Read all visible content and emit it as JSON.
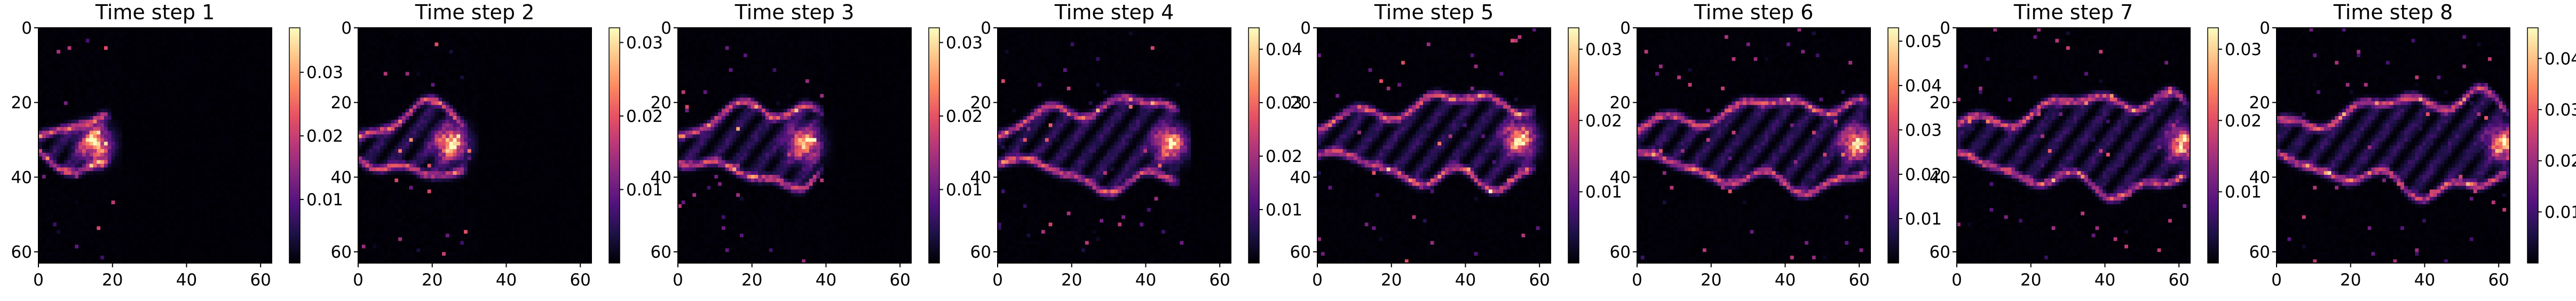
{
  "figure": {
    "colormap": "magma",
    "background": "#ffffff"
  },
  "chart_data": [
    {
      "type": "heatmap",
      "title": "Time step 1",
      "xlabel": "",
      "ylabel": "",
      "xlim": [
        0,
        63
      ],
      "ylim": [
        63,
        0
      ],
      "grid": false,
      "xticks": [
        "0",
        "20",
        "40",
        "60"
      ],
      "yticks": [
        "0",
        "20",
        "40",
        "60"
      ],
      "vmin": 0,
      "vmax": 0.037,
      "colorbar_ticks": [
        "0.01",
        "0.02",
        "0.03"
      ],
      "colorbar_tick_values": [
        0.01,
        0.02,
        0.03
      ],
      "plume": {
        "cy": 31,
        "half_width": 7,
        "length": 20,
        "front_x": 15,
        "peak": 0.037
      }
    },
    {
      "type": "heatmap",
      "title": "Time step 2",
      "xlabel": "",
      "ylabel": "",
      "xlim": [
        0,
        63
      ],
      "ylim": [
        63,
        0
      ],
      "grid": false,
      "xticks": [
        "0",
        "20",
        "40",
        "60"
      ],
      "yticks": [
        "0",
        "20",
        "40",
        "60"
      ],
      "vmin": 0,
      "vmax": 0.032,
      "colorbar_ticks": [
        "0.01",
        "0.02",
        "0.03"
      ],
      "colorbar_tick_values": [
        0.01,
        0.02,
        0.03
      ],
      "plume": {
        "cy": 31,
        "half_width": 9,
        "length": 30,
        "front_x": 25,
        "peak": 0.032
      }
    },
    {
      "type": "heatmap",
      "title": "Time step 3",
      "xlabel": "",
      "ylabel": "",
      "xlim": [
        0,
        63
      ],
      "ylim": [
        63,
        0
      ],
      "grid": false,
      "xticks": [
        "0",
        "20",
        "40",
        "60"
      ],
      "yticks": [
        "0",
        "20",
        "40",
        "60"
      ],
      "vmin": 0,
      "vmax": 0.032,
      "colorbar_ticks": [
        "0.01",
        "0.02",
        "0.03"
      ],
      "colorbar_tick_values": [
        0.01,
        0.02,
        0.03
      ],
      "plume": {
        "cy": 31,
        "half_width": 10,
        "length": 40,
        "front_x": 34,
        "peak": 0.032
      }
    },
    {
      "type": "heatmap",
      "title": "Time step 4",
      "xlabel": "",
      "ylabel": "",
      "xlim": [
        0,
        63
      ],
      "ylim": [
        63,
        0
      ],
      "grid": false,
      "xticks": [
        "0",
        "20",
        "40",
        "60"
      ],
      "yticks": [
        "0",
        "20",
        "40",
        "60"
      ],
      "vmin": 0,
      "vmax": 0.044,
      "colorbar_ticks": [
        "0.01",
        "0.02",
        "0.03",
        "0.04"
      ],
      "colorbar_tick_values": [
        0.01,
        0.02,
        0.03,
        0.04
      ],
      "plume": {
        "cy": 31,
        "half_width": 11,
        "length": 50,
        "front_x": 47,
        "peak": 0.044
      }
    },
    {
      "type": "heatmap",
      "title": "Time step 5",
      "xlabel": "",
      "ylabel": "",
      "xlim": [
        0,
        63
      ],
      "ylim": [
        63,
        0
      ],
      "grid": false,
      "xticks": [
        "0",
        "20",
        "40",
        "60"
      ],
      "yticks": [
        "0",
        "20",
        "40",
        "60"
      ],
      "vmin": 0,
      "vmax": 0.033,
      "colorbar_ticks": [
        "0.01",
        "0.02",
        "0.03"
      ],
      "colorbar_tick_values": [
        0.01,
        0.02,
        0.03
      ],
      "plume": {
        "cy": 30,
        "half_width": 11,
        "length": 60,
        "front_x": 55,
        "peak": 0.033
      }
    },
    {
      "type": "heatmap",
      "title": "Time step 6",
      "xlabel": "",
      "ylabel": "",
      "xlim": [
        0,
        63
      ],
      "ylim": [
        63,
        0
      ],
      "grid": false,
      "xticks": [
        "0",
        "20",
        "40",
        "60"
      ],
      "yticks": [
        "0",
        "20",
        "40",
        "60"
      ],
      "vmin": 0,
      "vmax": 0.053,
      "colorbar_ticks": [
        "0.01",
        "0.02",
        "0.03",
        "0.04",
        "0.05"
      ],
      "colorbar_tick_values": [
        0.01,
        0.02,
        0.03,
        0.04,
        0.05
      ],
      "plume": {
        "cy": 31,
        "half_width": 11,
        "length": 64,
        "front_x": 60,
        "peak": 0.053
      }
    },
    {
      "type": "heatmap",
      "title": "Time step 7",
      "xlabel": "",
      "ylabel": "",
      "xlim": [
        0,
        63
      ],
      "ylim": [
        63,
        0
      ],
      "grid": false,
      "xticks": [
        "0",
        "20",
        "40",
        "60"
      ],
      "yticks": [
        "0",
        "20",
        "40",
        "60"
      ],
      "vmin": 0,
      "vmax": 0.033,
      "colorbar_ticks": [
        "0.01",
        "0.02",
        "0.03"
      ],
      "colorbar_tick_values": [
        0.01,
        0.02,
        0.03
      ],
      "plume": {
        "cy": 31,
        "half_width": 12,
        "length": 64,
        "front_x": 62,
        "peak": 0.033
      }
    },
    {
      "type": "heatmap",
      "title": "Time step 8",
      "xlabel": "",
      "ylabel": "",
      "xlim": [
        0,
        63
      ],
      "ylim": [
        63,
        0
      ],
      "grid": false,
      "xticks": [
        "0",
        "20",
        "40",
        "60"
      ],
      "yticks": [
        "0",
        "20",
        "40",
        "60"
      ],
      "vmin": 0,
      "vmax": 0.046,
      "colorbar_ticks": [
        "0.01",
        "0.02",
        "0.03",
        "0.04"
      ],
      "colorbar_tick_values": [
        0.01,
        0.02,
        0.03,
        0.04
      ],
      "plume": {
        "cy": 31,
        "half_width": 12,
        "length": 64,
        "front_x": 62,
        "peak": 0.046
      }
    }
  ]
}
